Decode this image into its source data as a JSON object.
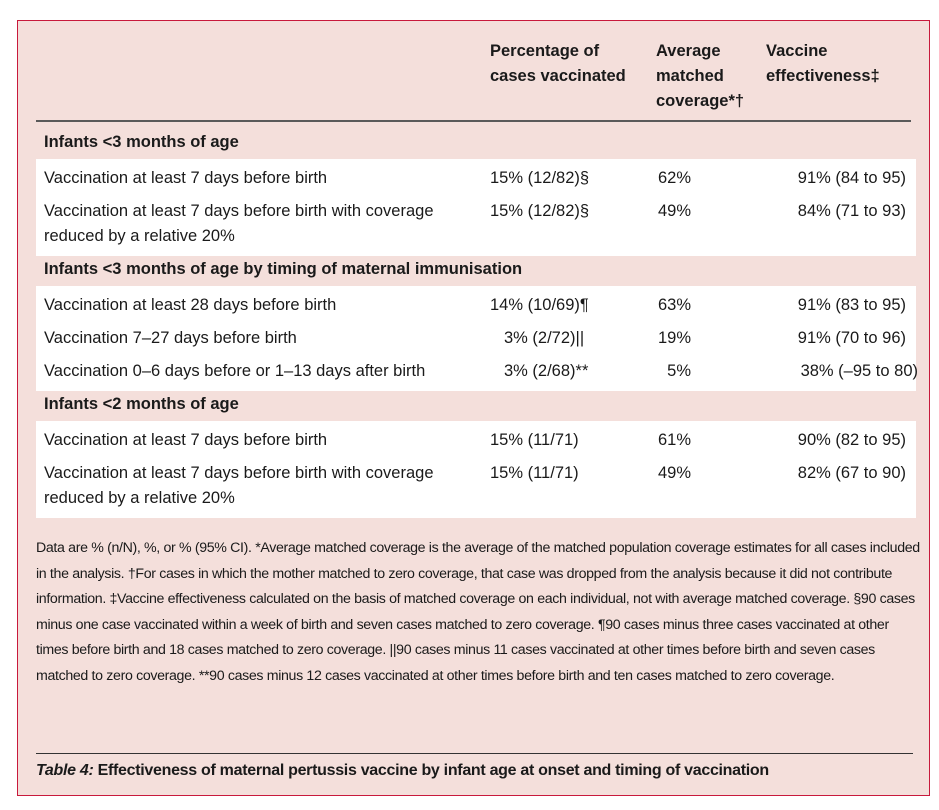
{
  "headers": {
    "col1": [
      "Percentage of",
      "cases vaccinated"
    ],
    "col2": [
      "Average",
      "matched",
      "coverage*†"
    ],
    "col3": [
      "Vaccine",
      "effectiveness‡"
    ]
  },
  "sections": [
    {
      "title": "Infants <3 months of age",
      "rows": [
        {
          "label": "Vaccination at least 7 days before birth",
          "pct": "15% (12/82)§",
          "coverage": "62%",
          "ve": "91% (84 to 95)"
        },
        {
          "label": "Vaccination at least 7 days before birth with coverage reduced by a relative 20%",
          "pct": "15% (12/82)§",
          "coverage": "49%",
          "ve": "84% (71 to 93)"
        }
      ]
    },
    {
      "title": "Infants <3 months of age by timing of maternal immunisation",
      "rows": [
        {
          "label": "Vaccination at least 28 days before birth",
          "pct": "14% (10/69)¶",
          "coverage": "63%",
          "ve": "91% (83 to 95)"
        },
        {
          "label": "Vaccination 7–27 days before birth",
          "pct": "3% (2/72)||",
          "coverage": "19%",
          "ve": "91% (70 to 96)"
        },
        {
          "label": "Vaccination 0–6 days before or 1–13 days after birth",
          "pct": "3% (2/68)**",
          "coverage": "5%",
          "ve": "38% (–95 to 80)"
        }
      ]
    },
    {
      "title": "Infants <2 months of age",
      "rows": [
        {
          "label": "Vaccination at least 7 days before birth",
          "pct": "15% (11/71)",
          "coverage": "61%",
          "ve": "90% (82 to 95)"
        },
        {
          "label": "Vaccination at least 7 days before birth with coverage reduced by a relative 20%",
          "pct": "15% (11/71)",
          "coverage": "49%",
          "ve": "82% (67 to 90)"
        }
      ]
    }
  ],
  "footnote": "Data are % (n/N), %, or % (95% CI). *Average matched coverage is the average of the matched population coverage estimates for all cases included in the analysis. †For cases in which the mother matched to zero coverage, that case was dropped from the analysis because it did not contribute information. ‡Vaccine effectiveness calculated on the basis of matched coverage on each individual, not with average matched coverage. §90 cases minus one case vaccinated within a week of birth and seven cases matched to zero coverage. ¶90 cases minus three cases vaccinated at other times before birth and 18 cases matched to zero coverage. ||90 cases minus 11 cases vaccinated at other times before birth and seven cases matched to zero coverage. **90 cases minus 12 cases vaccinated at other times before birth and ten cases matched to zero coverage.",
  "caption": {
    "label": "Table 4:",
    "text": " Effectiveness of maternal pertussis vaccine by infant age at onset and timing of vaccination"
  },
  "colors": {
    "background": "#f4dfdb",
    "border": "#c8193c",
    "band": "#ffffff"
  }
}
